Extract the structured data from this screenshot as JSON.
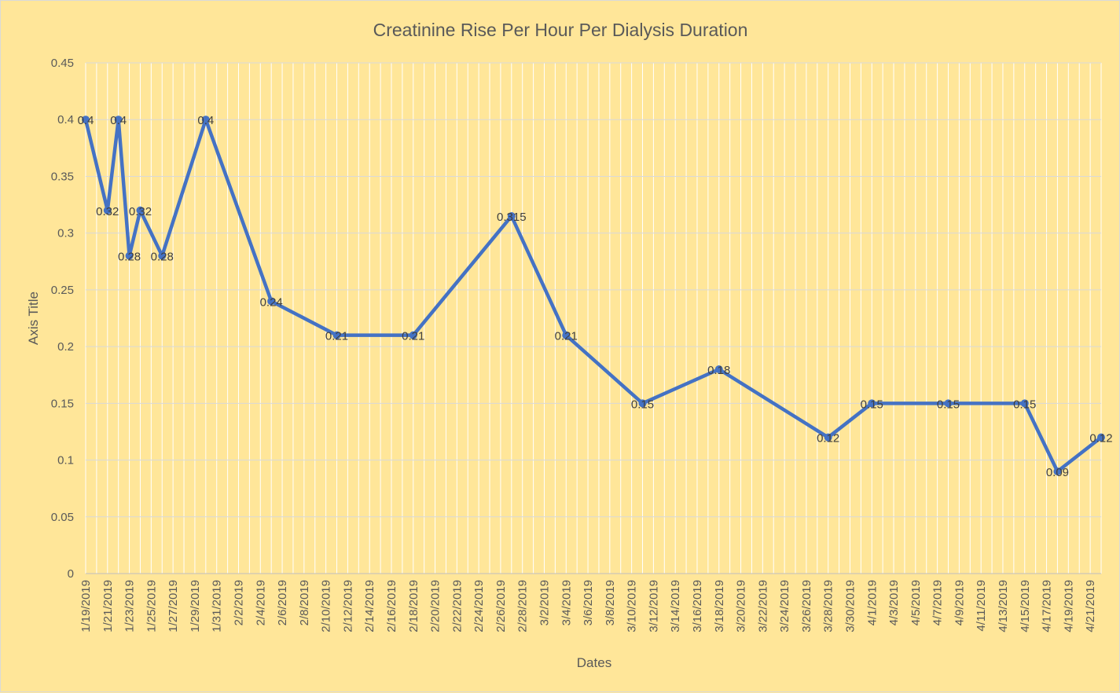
{
  "chart_data": {
    "type": "line",
    "title": "Creatinine Rise Per Hour Per Dialysis Duration",
    "xlabel": "Dates",
    "ylabel": "Axis Title",
    "xlim": [
      "1/19/2019",
      "4/22/2019"
    ],
    "ylim": [
      0,
      0.45
    ],
    "y_ticks": [
      "0",
      "0.05",
      "0.1",
      "0.15",
      "0.2",
      "0.25",
      "0.3",
      "0.35",
      "0.4",
      "0.45"
    ],
    "x_ticks": [
      "1/19/2019",
      "1/21/2019",
      "1/23/2019",
      "1/25/2019",
      "1/27/2019",
      "1/29/2019",
      "1/31/2019",
      "2/2/2019",
      "2/4/2019",
      "2/6/2019",
      "2/8/2019",
      "2/10/2019",
      "2/12/2019",
      "2/14/2019",
      "2/16/2019",
      "2/18/2019",
      "2/20/2019",
      "2/22/2019",
      "2/24/2019",
      "2/26/2019",
      "2/28/2019",
      "3/2/2019",
      "3/4/2019",
      "3/6/2019",
      "3/8/2019",
      "3/10/2019",
      "3/12/2019",
      "3/14/2019",
      "3/16/2019",
      "3/18/2019",
      "3/20/2019",
      "3/22/2019",
      "3/24/2019",
      "3/26/2019",
      "3/28/2019",
      "3/30/2019",
      "4/1/2019",
      "4/3/2019",
      "4/5/2019",
      "4/7/2019",
      "4/9/2019",
      "4/11/2019",
      "4/13/2019",
      "4/15/2019",
      "4/17/2019",
      "4/19/2019",
      "4/21/2019"
    ],
    "grid": true,
    "series": [
      {
        "color": "#4472c4",
        "points": [
          {
            "x": "1/19/2019",
            "y": 0.4,
            "label": "0.4"
          },
          {
            "x": "1/21/2019",
            "y": 0.32,
            "label": "0.32"
          },
          {
            "x": "1/22/2019",
            "y": 0.4,
            "label": "0.4"
          },
          {
            "x": "1/23/2019",
            "y": 0.28,
            "label": "0.28"
          },
          {
            "x": "1/24/2019",
            "y": 0.32,
            "label": "0.32"
          },
          {
            "x": "1/26/2019",
            "y": 0.28,
            "label": "0.28"
          },
          {
            "x": "1/30/2019",
            "y": 0.4,
            "label": "0.4"
          },
          {
            "x": "2/5/2019",
            "y": 0.24,
            "label": "0.24"
          },
          {
            "x": "2/11/2019",
            "y": 0.21,
            "label": "0.21"
          },
          {
            "x": "2/18/2019",
            "y": 0.21,
            "label": "0.21"
          },
          {
            "x": "2/27/2019",
            "y": 0.315,
            "label": "0.315"
          },
          {
            "x": "3/4/2019",
            "y": 0.21,
            "label": "0.21"
          },
          {
            "x": "3/11/2019",
            "y": 0.15,
            "label": "0.15"
          },
          {
            "x": "3/18/2019",
            "y": 0.18,
            "label": "0.18"
          },
          {
            "x": "3/28/2019",
            "y": 0.12,
            "label": "0.12"
          },
          {
            "x": "4/1/2019",
            "y": 0.15,
            "label": "0.15"
          },
          {
            "x": "4/8/2019",
            "y": 0.15,
            "label": "0.15"
          },
          {
            "x": "4/15/2019",
            "y": 0.15,
            "label": "0.15"
          },
          {
            "x": "4/18/2019",
            "y": 0.09,
            "label": "0.09"
          },
          {
            "x": "4/22/2019",
            "y": 0.12,
            "label": "0.12"
          }
        ]
      }
    ]
  }
}
